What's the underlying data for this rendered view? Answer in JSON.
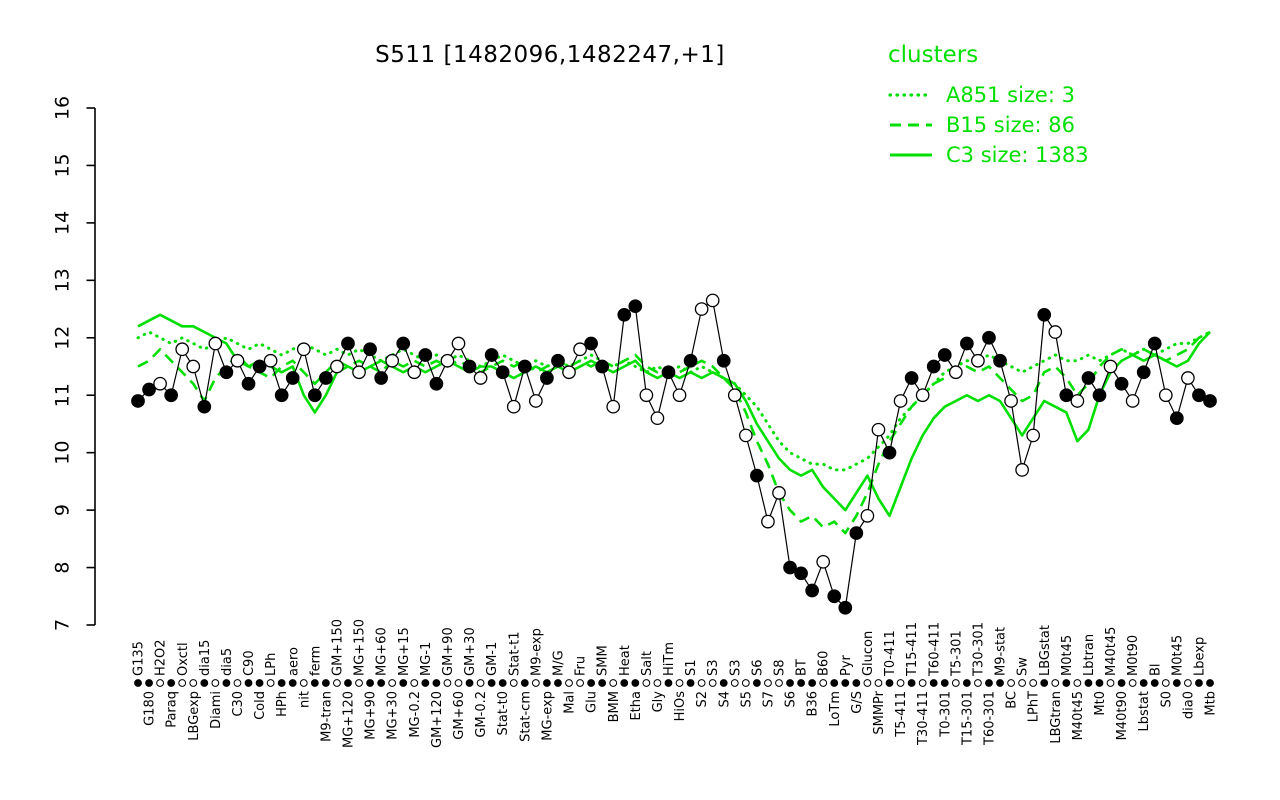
{
  "colors": {
    "cluster_green": "#00DF00",
    "series_black": "#000000",
    "background": "#ffffff"
  },
  "chart_data": {
    "type": "line",
    "title": "S511 [1482096,1482247,+1]",
    "xlabel": "",
    "ylabel": "",
    "ylim": [
      7,
      16
    ],
    "yticks": [
      7,
      8,
      9,
      10,
      11,
      12,
      13,
      14,
      15,
      16
    ],
    "grid": false,
    "legend": {
      "title": "clusters",
      "position": "top-right",
      "color": "#00DF00",
      "entries": [
        {
          "label": "A851 size: 3",
          "style": "dotted"
        },
        {
          "label": "B15 size: 86",
          "style": "dashed"
        },
        {
          "label": "C3 size: 1383",
          "style": "solid"
        }
      ]
    },
    "categories": [
      "G135",
      "G180",
      "H2O2",
      "Paraq",
      "Oxctl",
      "LBGexp",
      "dia15",
      "Diami",
      "dia5",
      "C30",
      "C90",
      "Cold",
      "LPh",
      "HPh",
      "aero",
      "nit",
      "ferm",
      "M9-tran",
      "GM+150",
      "MG+120",
      "MG+150",
      "MG+90",
      "MG+60",
      "MG+30",
      "MG+15",
      "MG-0.2",
      "MG-1",
      "GM+120",
      "GM+90",
      "GM+60",
      "GM+30",
      "GM-0.2",
      "GM-1",
      "Stat-t0",
      "Stat-t1",
      "Stat-cm",
      "M9-exp",
      "MG-exp",
      "M/G",
      "Mal",
      "Fru",
      "Glu",
      "SMM",
      "BMM",
      "Heat",
      "Etha",
      "Salt",
      "Gly",
      "HiTm",
      "HiOs",
      "S1",
      "S2",
      "S3",
      "S4",
      "S3",
      "S5",
      "S6",
      "S7",
      "S8",
      "S6",
      "BT",
      "B36",
      "B60",
      "LoTm",
      "Pyr",
      "G/S",
      "Glucon",
      "SMMPr",
      "T0-411",
      "T5-411",
      "T15-411",
      "T30-411",
      "T60-411",
      "T0-301",
      "T5-301",
      "T15-301",
      "T30-301",
      "T60-301",
      "M9-stat",
      "BC",
      "Sw",
      "LPhT",
      "LBGstat",
      "LBGtran",
      "M0t45",
      "M40t45",
      "Lbtran",
      "Mt0",
      "M40t45",
      "M40t90",
      "M0t90",
      "Lbstat",
      "Bl",
      "S0",
      "M0t45",
      "dia0",
      "Lbexp",
      "Mtb"
    ],
    "series": [
      {
        "name": "probe",
        "color": "#000000",
        "style": "solid-markers",
        "values": [
          10.9,
          11.1,
          11.2,
          11.0,
          11.8,
          11.5,
          10.8,
          11.9,
          11.4,
          11.6,
          11.2,
          11.5,
          11.6,
          11.0,
          11.3,
          11.8,
          11.0,
          11.3,
          11.5,
          11.9,
          11.4,
          11.8,
          11.3,
          11.6,
          11.9,
          11.4,
          11.7,
          11.2,
          11.6,
          11.9,
          11.5,
          11.3,
          11.7,
          11.4,
          10.8,
          11.5,
          10.9,
          11.3,
          11.6,
          11.4,
          11.8,
          11.9,
          11.5,
          10.8,
          12.4,
          12.55,
          11.0,
          10.6,
          11.4,
          11.0,
          11.6,
          12.5,
          12.65,
          11.6,
          11.0,
          10.3,
          9.6,
          8.8,
          9.3,
          8.0,
          7.9,
          7.6,
          8.1,
          7.5,
          7.3,
          8.6,
          8.9,
          10.4,
          10.0,
          10.9,
          11.3,
          11.0,
          11.5,
          11.7,
          11.4,
          11.9,
          11.6,
          12.0,
          11.6,
          10.9,
          9.7,
          10.3,
          12.4,
          12.1,
          11.0,
          10.9,
          11.3,
          11.0,
          11.5,
          11.2,
          10.9,
          11.4,
          11.9,
          11.0,
          10.6,
          11.3,
          11.0,
          10.9
        ],
        "markers": [
          1,
          1,
          0,
          1,
          0,
          0,
          1,
          0,
          1,
          0,
          1,
          1,
          0,
          1,
          1,
          0,
          1,
          1,
          0,
          1,
          0,
          1,
          1,
          0,
          1,
          0,
          1,
          1,
          0,
          0,
          1,
          0,
          1,
          1,
          0,
          1,
          0,
          1,
          1,
          0,
          0,
          1,
          1,
          0,
          1,
          1,
          0,
          0,
          1,
          0,
          1,
          0,
          0,
          1,
          0,
          0,
          1,
          0,
          0,
          1,
          1,
          1,
          0,
          1,
          1,
          1,
          0,
          0,
          1,
          0,
          1,
          0,
          1,
          1,
          0,
          1,
          0,
          1,
          1,
          0,
          0,
          0,
          1,
          0,
          1,
          0,
          1,
          1,
          0,
          1,
          0,
          1,
          1,
          0,
          1,
          0,
          1,
          1
        ]
      },
      {
        "name": "A851",
        "color": "#00DF00",
        "style": "dotted",
        "values": [
          12.0,
          12.1,
          12.0,
          11.9,
          12.0,
          11.9,
          11.8,
          11.9,
          12.0,
          11.9,
          11.8,
          11.9,
          11.8,
          11.7,
          11.8,
          11.9,
          11.8,
          11.7,
          11.8,
          11.7,
          11.8,
          11.7,
          11.6,
          11.7,
          11.8,
          11.7,
          11.6,
          11.7,
          11.6,
          11.7,
          11.6,
          11.5,
          11.6,
          11.7,
          11.6,
          11.5,
          11.6,
          11.5,
          11.6,
          11.5,
          11.6,
          11.7,
          11.6,
          11.5,
          11.6,
          11.5,
          11.4,
          11.5,
          11.4,
          11.5,
          11.4,
          11.5,
          11.4,
          11.3,
          11.2,
          11.0,
          10.8,
          10.5,
          10.2,
          10.0,
          9.9,
          9.8,
          9.8,
          9.7,
          9.7,
          9.8,
          9.9,
          10.1,
          10.3,
          10.6,
          10.8,
          11.0,
          11.2,
          11.4,
          11.5,
          11.6,
          11.6,
          11.7,
          11.6,
          11.5,
          11.4,
          11.5,
          11.6,
          11.7,
          11.6,
          11.6,
          11.7,
          11.6,
          11.7,
          11.8,
          11.7,
          11.8,
          11.7,
          11.8,
          11.9,
          11.9,
          12.0,
          12.1
        ]
      },
      {
        "name": "B15",
        "color": "#00DF00",
        "style": "dashed",
        "values": [
          11.5,
          11.6,
          11.8,
          11.6,
          11.4,
          11.2,
          10.9,
          11.3,
          11.5,
          11.7,
          11.5,
          11.4,
          11.3,
          11.5,
          11.6,
          11.4,
          11.2,
          11.4,
          11.6,
          11.5,
          11.6,
          11.5,
          11.4,
          11.6,
          11.5,
          11.6,
          11.5,
          11.6,
          11.5,
          11.6,
          11.5,
          11.4,
          11.5,
          11.6,
          11.5,
          11.6,
          11.4,
          11.5,
          11.6,
          11.5,
          11.6,
          11.5,
          11.6,
          11.5,
          11.6,
          11.7,
          11.5,
          11.4,
          11.5,
          11.4,
          11.5,
          11.6,
          11.5,
          11.3,
          11.1,
          10.7,
          10.2,
          9.8,
          9.3,
          9.0,
          8.8,
          8.9,
          8.7,
          8.8,
          8.6,
          8.9,
          9.3,
          9.8,
          10.2,
          10.5,
          10.8,
          11.0,
          11.2,
          11.3,
          11.4,
          11.5,
          11.4,
          11.5,
          11.3,
          11.1,
          10.9,
          11.0,
          11.4,
          11.5,
          11.3,
          11.0,
          11.2,
          11.5,
          11.7,
          11.8,
          11.7,
          11.8,
          11.7,
          11.6,
          11.7,
          11.8,
          12.0,
          12.1
        ]
      },
      {
        "name": "C3",
        "color": "#00DF00",
        "style": "solid",
        "values": [
          12.2,
          12.3,
          12.4,
          12.3,
          12.2,
          12.2,
          12.1,
          12.0,
          11.9,
          11.6,
          11.5,
          11.6,
          11.5,
          11.4,
          11.5,
          11.0,
          10.7,
          11.0,
          11.4,
          11.5,
          11.4,
          11.5,
          11.6,
          11.5,
          11.4,
          11.5,
          11.4,
          11.5,
          11.6,
          11.5,
          11.4,
          11.5,
          11.5,
          11.4,
          11.3,
          11.4,
          11.5,
          11.4,
          11.5,
          11.4,
          11.5,
          11.6,
          11.5,
          11.4,
          11.5,
          11.6,
          11.4,
          11.3,
          11.4,
          11.3,
          11.4,
          11.3,
          11.4,
          11.3,
          11.2,
          10.9,
          10.5,
          10.2,
          9.9,
          9.7,
          9.6,
          9.7,
          9.4,
          9.2,
          9.0,
          9.3,
          9.6,
          9.2,
          8.9,
          9.4,
          9.9,
          10.3,
          10.6,
          10.8,
          10.9,
          11.0,
          10.9,
          11.0,
          10.9,
          10.6,
          10.3,
          10.6,
          10.9,
          10.8,
          10.7,
          10.2,
          10.4,
          11.0,
          11.4,
          11.6,
          11.7,
          11.6,
          11.7,
          11.6,
          11.5,
          11.6,
          11.9,
          12.1
        ]
      }
    ]
  }
}
